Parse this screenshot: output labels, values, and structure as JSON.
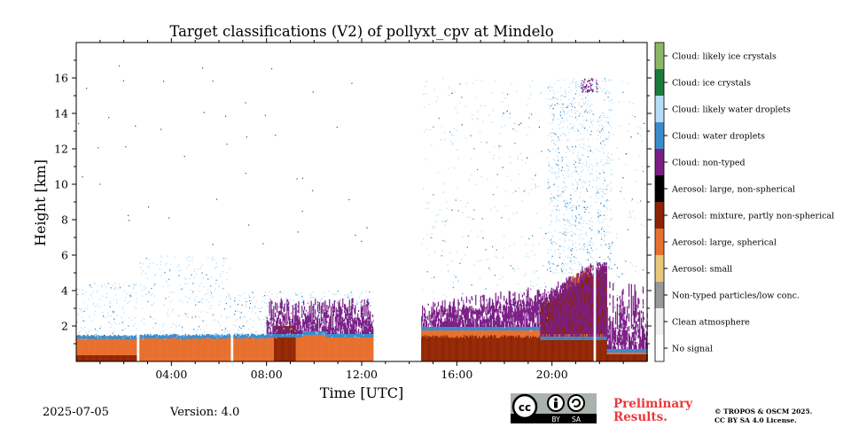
{
  "date": "2025-07-05",
  "version": "Version: 4.0",
  "preliminary": [
    "Preliminary",
    "Results."
  ],
  "copyright": [
    "© TROPOS & OSCM 2025.",
    "CC BY SA 4.0 License."
  ],
  "license_badge": {
    "by": "BY",
    "sa": "SA"
  },
  "chart_data": {
    "type": "heatmap",
    "title": "Target classifications (V2) of pollyxt_cpv at Mindelo",
    "xlabel": "Time [UTC]",
    "ylabel": "Height [km]",
    "xlim_hours": [
      0,
      24
    ],
    "ylim_km": [
      0,
      18
    ],
    "x_ticks": [
      {
        "value": 4,
        "label": "04:00"
      },
      {
        "value": 8,
        "label": "08:00"
      },
      {
        "value": 12,
        "label": "12:00"
      },
      {
        "value": 16,
        "label": "16:00"
      },
      {
        "value": 20,
        "label": "20:00"
      }
    ],
    "y_ticks": [
      {
        "value": 2,
        "label": "2"
      },
      {
        "value": 4,
        "label": "4"
      },
      {
        "value": 6,
        "label": "6"
      },
      {
        "value": 8,
        "label": "8"
      },
      {
        "value": 10,
        "label": "10"
      },
      {
        "value": 12,
        "label": "12"
      },
      {
        "value": 14,
        "label": "14"
      },
      {
        "value": 16,
        "label": "16"
      }
    ],
    "classes": [
      {
        "label": "No signal",
        "color": "#ffffff"
      },
      {
        "label": "Clean atmosphere",
        "color": "#f2f2f2"
      },
      {
        "label": "Non-typed particles/low conc.",
        "color": "#999999"
      },
      {
        "label": "Aerosol: small",
        "color": "#e8c87a"
      },
      {
        "label": "Aerosol: large, spherical",
        "color": "#e8702f"
      },
      {
        "label": "Aerosol: mixture, partly non-spherical",
        "color": "#8b2304"
      },
      {
        "label": "Aerosol: large, non-spherical",
        "color": "#000000"
      },
      {
        "label": "Cloud: non-typed",
        "color": "#7b1f86"
      },
      {
        "label": "Cloud: water droplets",
        "color": "#3b8ccc"
      },
      {
        "label": "Cloud: likely water droplets",
        "color": "#b6ddf6"
      },
      {
        "label": "Cloud: ice crystals",
        "color": "#1c7a3a"
      },
      {
        "label": "Cloud: likely ice crystals",
        "color": "#8cb866"
      }
    ],
    "layers": {
      "description_free": true,
      "segments": [
        {
          "t0": 0.0,
          "t1": 2.55,
          "base_top": 1.25,
          "mixture_top": 0.35,
          "nontyped_top": 1.4,
          "cirrus_top": 4.5
        },
        {
          "t0": 2.65,
          "t1": 6.5,
          "base_top": 1.3,
          "mixture_top": 0.0,
          "nontyped_top": 1.4,
          "cirrus_top": 6.0
        },
        {
          "t0": 6.6,
          "t1": 12.5,
          "base_top": 1.3,
          "mixture_top": 0.0,
          "nontyped_top": 3.5,
          "cirrus_top": 4.0
        },
        {
          "t0": 14.5,
          "t1": 24.0,
          "base_top": 1.6,
          "mixture_top": 5.2,
          "nontyped_top": 5.4,
          "cirrus_top": 16.0
        }
      ],
      "gaps_hours": [
        [
          2.55,
          2.65
        ],
        [
          6.5,
          6.6
        ],
        [
          12.5,
          14.5
        ],
        [
          21.75,
          21.85
        ]
      ]
    }
  }
}
